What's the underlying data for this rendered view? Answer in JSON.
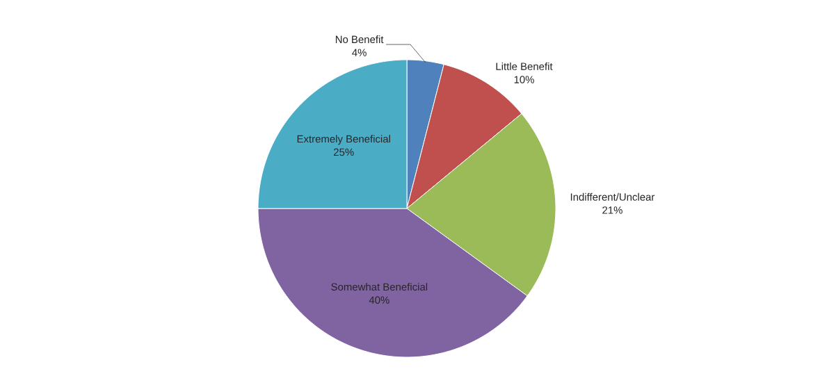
{
  "chart_data": {
    "type": "pie",
    "categories": [
      "No Benefit",
      "Little Benefit",
      "Indifferent/Unclear",
      "Somewhat Beneficial",
      "Extremely Beneficial"
    ],
    "values": [
      4,
      10,
      21,
      40,
      25
    ],
    "value_labels": [
      "4%",
      "10%",
      "21%",
      "40%",
      "25%"
    ],
    "colors": [
      "#4f81bd",
      "#c0504d",
      "#9bbb59",
      "#8064a2",
      "#4bacc6"
    ]
  }
}
